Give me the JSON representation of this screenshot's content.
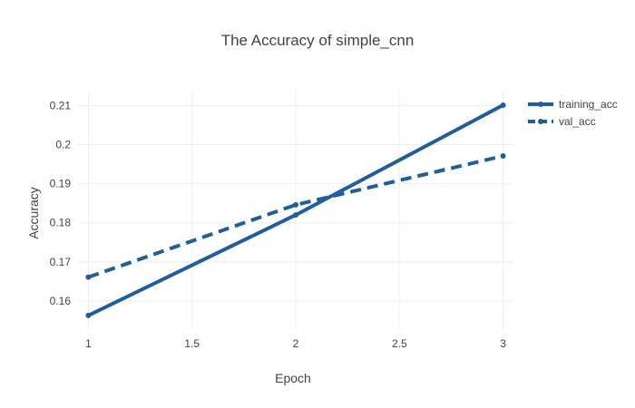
{
  "chart_data": {
    "type": "line",
    "title": "The Accuracy of simple_cnn",
    "xlabel": "Epoch",
    "ylabel": "Accuracy",
    "xlim": [
      0.95,
      3.05
    ],
    "ylim": [
      0.1528,
      0.2138
    ],
    "x_ticks": [
      1,
      1.5,
      2,
      2.5,
      3
    ],
    "x_tick_labels": [
      "1",
      "1.5",
      "2",
      "2.5",
      "3"
    ],
    "y_ticks": [
      0.16,
      0.17,
      0.18,
      0.19,
      0.2,
      0.21
    ],
    "y_tick_labels": [
      "0.16",
      "0.17",
      "0.18",
      "0.19",
      "0.2",
      "0.21"
    ],
    "grid": true,
    "legend_position": "top-right",
    "series": [
      {
        "name": "training_acc",
        "x": [
          1,
          2,
          3
        ],
        "y": [
          0.1563,
          0.182,
          0.2101
        ],
        "color": "#1f5fa0",
        "dash": "solid"
      },
      {
        "name": "val_acc",
        "x": [
          1,
          2,
          3
        ],
        "y": [
          0.1661,
          0.1846,
          0.1971
        ],
        "color": "#1f5fa0",
        "dash": "dashed"
      }
    ]
  }
}
